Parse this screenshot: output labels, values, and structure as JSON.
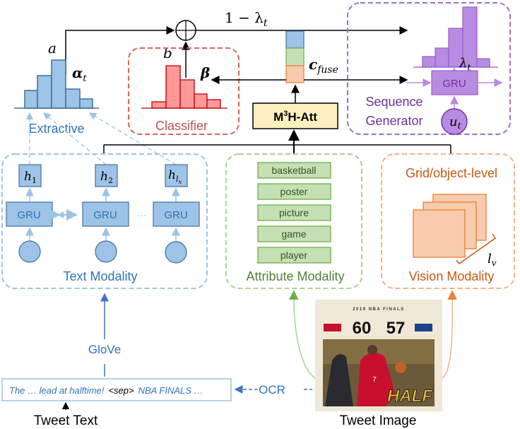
{
  "colors": {
    "text_blue": "#2e75b6",
    "blue_fill": "#9dc3e6",
    "blue_stroke": "#41719c",
    "red_text": "#c0504d",
    "red_fill": "#ff9999",
    "red_stroke": "#c00000",
    "purple_text": "#7030a0",
    "purple_fill": "#b88ce0",
    "green_text": "#548235",
    "green_fill": "#c5e0b4",
    "green_stroke": "#70ad47",
    "orange_text": "#c55a11",
    "orange_fill": "#f8cbad",
    "orange_stroke": "#ed7d31",
    "yellow_fill": "#fdf0c0"
  },
  "top": {
    "a": "a",
    "b": "b",
    "one_minus": "1 − λ",
    "one_minus_sub": "t",
    "plus_icon": "circled-plus"
  },
  "extractive": {
    "label": "Extractive",
    "alpha": "α",
    "alpha_sub": "t"
  },
  "classifier": {
    "label": "Classifier",
    "beta": "β"
  },
  "fuse": {
    "c": "c",
    "sub": "fuse"
  },
  "attention": {
    "label_main": "M",
    "label_sup": "3",
    "label_rest": "H-Att"
  },
  "generator": {
    "label_line1": "Sequence",
    "label_line2": "Generator",
    "gru": "GRU",
    "lambda": "λ",
    "lambda_sub": "t",
    "u": "u",
    "u_sub": "t"
  },
  "text_modality": {
    "label": "Text Modality",
    "cells": [
      {
        "h": "h",
        "sub": "1",
        "gru": "GRU"
      },
      {
        "h": "h",
        "sub": "2",
        "gru": "GRU"
      },
      {
        "h": "h",
        "sub": "l",
        "subsub": "x",
        "gru": "GRU"
      }
    ],
    "ellipsis": "···"
  },
  "attribute_modality": {
    "label": "Attribute Modality",
    "items": [
      "basketball",
      "poster",
      "picture",
      "game",
      "player"
    ]
  },
  "vision_modality": {
    "title": "Grid/object-level",
    "label": "Vision Modality",
    "lv": "l",
    "lv_sub": "v"
  },
  "bottom": {
    "glove": "GloVe",
    "ocr": "OCR",
    "tweet_text_label": "Tweet Text",
    "tweet_image_label": "Tweet Image",
    "tweet_text_part1": "The … lead at halftime!",
    "tweet_text_sep": "<sep>",
    "tweet_text_part2": "NBA FINALS …"
  },
  "tweet_image": {
    "header": "2019 NBA FINALS",
    "score_left": "60",
    "score_right": "57",
    "banner": "HALF",
    "jersey": "7"
  }
}
